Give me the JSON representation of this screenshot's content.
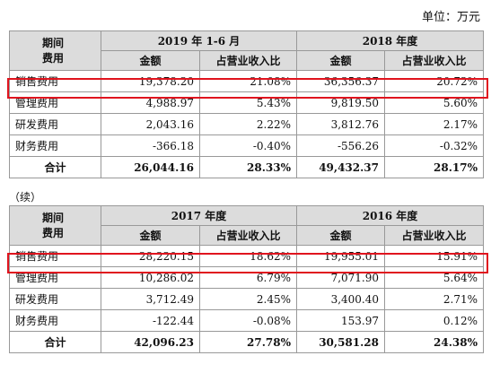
{
  "unit": "单位：万元",
  "continued": "（续）",
  "table1": {
    "corner": [
      "期间",
      "费用"
    ],
    "periods": [
      "2019 年 1-6 月",
      "2018 年度"
    ],
    "sub_headers": [
      "金额",
      "占营业收入比",
      "金额",
      "占营业收入比"
    ],
    "rows": [
      {
        "label": "销售费用",
        "cells": [
          "19,378.20",
          "21.08%",
          "36,356.37",
          "20.72%"
        ]
      },
      {
        "label": "管理费用",
        "cells": [
          "4,988.97",
          "5.43%",
          "9,819.50",
          "5.60%"
        ]
      },
      {
        "label": "研发费用",
        "cells": [
          "2,043.16",
          "2.22%",
          "3,812.76",
          "2.17%"
        ]
      },
      {
        "label": "财务费用",
        "cells": [
          "-366.18",
          "-0.40%",
          "-556.26",
          "-0.32%"
        ]
      }
    ],
    "total": {
      "label": "合计",
      "cells": [
        "26,044.16",
        "28.33%",
        "49,432.37",
        "28.17%"
      ]
    }
  },
  "table2": {
    "corner": [
      "期间",
      "费用"
    ],
    "periods": [
      "2017 年度",
      "2016 年度"
    ],
    "sub_headers": [
      "金额",
      "占营业收入比",
      "金额",
      "占营业收入比"
    ],
    "rows": [
      {
        "label": "销售费用",
        "cells": [
          "28,220.15",
          "18.62%",
          "19,955.01",
          "15.91%"
        ]
      },
      {
        "label": "管理费用",
        "cells": [
          "10,286.02",
          "6.79%",
          "7,071.90",
          "5.64%"
        ]
      },
      {
        "label": "研发费用",
        "cells": [
          "3,712.49",
          "2.45%",
          "3,400.40",
          "2.71%"
        ]
      },
      {
        "label": "财务费用",
        "cells": [
          "-122.44",
          "-0.08%",
          "153.97",
          "0.12%"
        ]
      }
    ],
    "total": {
      "label": "合计",
      "cells": [
        "42,096.23",
        "27.78%",
        "30,581.28",
        "24.38%"
      ]
    }
  },
  "highlight_color": "#e0141e",
  "header_fill": "#dcdcdc"
}
